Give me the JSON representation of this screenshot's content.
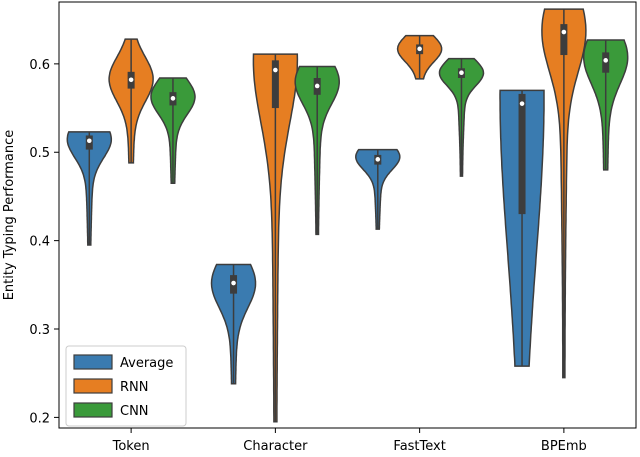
{
  "chart_data": {
    "type": "violin",
    "title": "",
    "xlabel": "",
    "ylabel": "Entity Typing Performance",
    "ylim": [
      0.188,
      0.67
    ],
    "yticks": [
      0.2,
      0.3,
      0.4,
      0.5,
      0.6
    ],
    "categories": [
      "Token",
      "Character",
      "FastText",
      "BPEmb"
    ],
    "legend_position": "lower-left",
    "series": [
      {
        "name": "Average",
        "color": "#3a7bb0",
        "violins": [
          {
            "min": 0.395,
            "max": 0.523,
            "q1": 0.503,
            "median": 0.513,
            "q3": 0.519,
            "mode": 0.515
          },
          {
            "min": 0.238,
            "max": 0.373,
            "q1": 0.34,
            "median": 0.352,
            "q3": 0.361,
            "mode": 0.352
          },
          {
            "min": 0.413,
            "max": 0.503,
            "q1": 0.486,
            "median": 0.492,
            "q3": 0.497,
            "mode": 0.495
          },
          {
            "min": 0.258,
            "max": 0.57,
            "q1": 0.43,
            "median": 0.555,
            "q3": 0.566,
            "mode": 0.565
          }
        ]
      },
      {
        "name": "RNN",
        "color": "#e67e22",
        "violins": [
          {
            "min": 0.488,
            "max": 0.628,
            "q1": 0.572,
            "median": 0.582,
            "q3": 0.591,
            "mode": 0.583
          },
          {
            "min": 0.195,
            "max": 0.611,
            "q1": 0.55,
            "median": 0.593,
            "q3": 0.604,
            "mode": 0.605
          },
          {
            "min": 0.583,
            "max": 0.632,
            "q1": 0.611,
            "median": 0.617,
            "q3": 0.622,
            "mode": 0.617
          },
          {
            "min": 0.245,
            "max": 0.662,
            "q1": 0.61,
            "median": 0.636,
            "q3": 0.645,
            "mode": 0.638
          }
        ]
      },
      {
        "name": "CNN",
        "color": "#3a9a3a",
        "violins": [
          {
            "min": 0.465,
            "max": 0.584,
            "q1": 0.553,
            "median": 0.561,
            "q3": 0.568,
            "mode": 0.563
          },
          {
            "min": 0.407,
            "max": 0.597,
            "q1": 0.565,
            "median": 0.575,
            "q3": 0.584,
            "mode": 0.58
          },
          {
            "min": 0.473,
            "max": 0.606,
            "q1": 0.584,
            "median": 0.59,
            "q3": 0.595,
            "mode": 0.59
          },
          {
            "min": 0.48,
            "max": 0.627,
            "q1": 0.59,
            "median": 0.604,
            "q3": 0.613,
            "mode": 0.608
          }
        ]
      }
    ]
  }
}
